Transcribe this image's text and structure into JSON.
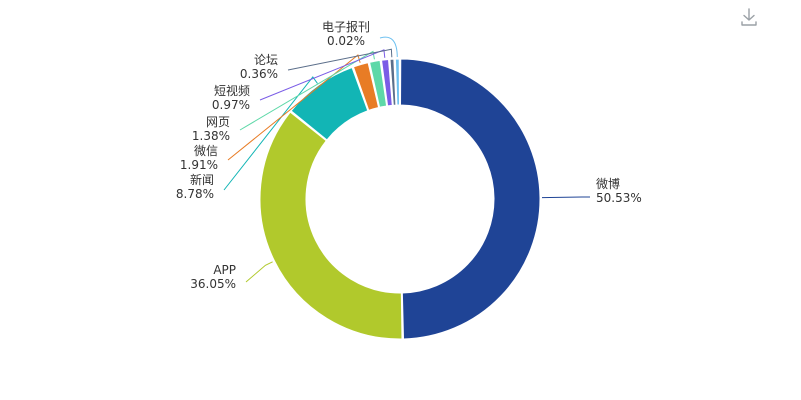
{
  "colors": {
    "background": "#ffffff",
    "label_text": "#333333",
    "download_icon": "#9aa0a6"
  },
  "toolbar": {
    "download_icon": "download-icon"
  },
  "chart_data": {
    "type": "pie",
    "variant": "donut",
    "title": "",
    "slices": [
      {
        "name": "微博",
        "value": 50.53,
        "label": "50.53%",
        "color": "#1f4496"
      },
      {
        "name": "APP",
        "value": 36.05,
        "label": "36.05%",
        "color": "#b1c92c"
      },
      {
        "name": "新闻",
        "value": 8.78,
        "label": "8.78%",
        "color": "#12b5b5"
      },
      {
        "name": "微信",
        "value": 1.91,
        "label": "1.91%",
        "color": "#e87c25"
      },
      {
        "name": "网页",
        "value": 1.38,
        "label": "1.38%",
        "color": "#5ed8a8"
      },
      {
        "name": "短视频",
        "value": 0.97,
        "label": "0.97%",
        "color": "#7a5ce6"
      },
      {
        "name": "论坛",
        "value": 0.36,
        "label": "0.36%",
        "color": "#5b6e8a"
      },
      {
        "name": "电子报刊",
        "value": 0.02,
        "label": "0.02%",
        "color": "#6cc0f0"
      }
    ],
    "legend": "none"
  }
}
